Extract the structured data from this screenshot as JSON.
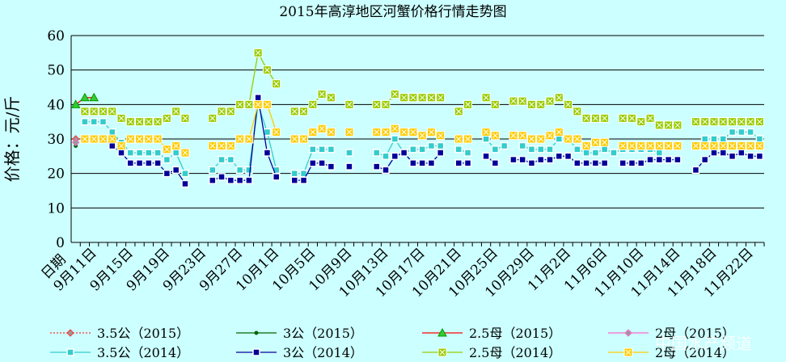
{
  "chart_data": {
    "type": "line",
    "title": "2015年高淳地区河蟹价格行情走势图",
    "ylabel": "价格：元/斤",
    "xlabel": "日期",
    "watermark": "中国水产频道",
    "ylim": [
      0,
      60
    ],
    "yticks": [
      0,
      10,
      20,
      30,
      40,
      50,
      60
    ],
    "grid": true,
    "categories": [
      null,
      null,
      "9月11日",
      null,
      null,
      null,
      "9月15日",
      null,
      null,
      null,
      "9月19日",
      null,
      null,
      null,
      "9月23日",
      null,
      null,
      null,
      "9月27日",
      null,
      null,
      null,
      "10月1日",
      null,
      null,
      null,
      "10月5日",
      null,
      null,
      null,
      "10月9日",
      null,
      null,
      null,
      "10月13日",
      null,
      null,
      null,
      "10月17日",
      null,
      null,
      null,
      "10月21日",
      null,
      null,
      null,
      "10月25日",
      null,
      null,
      null,
      "10月29日",
      null,
      null,
      null,
      "11月2日",
      null,
      null,
      null,
      "11月6日",
      null,
      null,
      null,
      "11月10日",
      null,
      null,
      null,
      "11月14日",
      null,
      null,
      null,
      "11月18日",
      null,
      null,
      null,
      "11月22日",
      null
    ],
    "series": [
      {
        "name": "3.5公（2015）",
        "color": "#ff3333",
        "marker": "diamond",
        "dash": true,
        "values": [
          30,
          null,
          null,
          null,
          null,
          null,
          null,
          null,
          null,
          null,
          null,
          null,
          null,
          null,
          null,
          null,
          null,
          null,
          null,
          null,
          null,
          null,
          null,
          null,
          null,
          null,
          null,
          null,
          null,
          null,
          null,
          null,
          null,
          null,
          null,
          null,
          null,
          null,
          null,
          null,
          null,
          null,
          null,
          null,
          null,
          null,
          null,
          null,
          null,
          null,
          null,
          null,
          null,
          null,
          null,
          null,
          null,
          null,
          null,
          null,
          null,
          null,
          null,
          null,
          null,
          null,
          null,
          null,
          null,
          null,
          null,
          null,
          null,
          null,
          null,
          null
        ]
      },
      {
        "name": "3公（2015）",
        "color": "#006600",
        "marker": "dot",
        "values": [
          28,
          null,
          null,
          null,
          null,
          null,
          null,
          null,
          null,
          null,
          null,
          null,
          null,
          null,
          null,
          null,
          null,
          null,
          null,
          null,
          null,
          null,
          null,
          null,
          null,
          null,
          null,
          null,
          null,
          null,
          null,
          null,
          null,
          null,
          null,
          null,
          null,
          null,
          null,
          null,
          null,
          null,
          null,
          null,
          null,
          null,
          null,
          null,
          null,
          null,
          null,
          null,
          null,
          null,
          null,
          null,
          null,
          null,
          null,
          null,
          null,
          null,
          null,
          null,
          null,
          null,
          null,
          null,
          null,
          null,
          null,
          null,
          null,
          null,
          null,
          null
        ]
      },
      {
        "name": "2.5母（2015）",
        "color": "#ff0000",
        "marker": "triangle",
        "values": [
          40,
          42,
          42,
          null,
          null,
          null,
          null,
          null,
          null,
          null,
          null,
          null,
          null,
          null,
          null,
          null,
          null,
          null,
          null,
          null,
          null,
          null,
          null,
          null,
          null,
          null,
          null,
          null,
          null,
          null,
          null,
          null,
          null,
          null,
          null,
          null,
          null,
          null,
          null,
          null,
          null,
          null,
          null,
          null,
          null,
          null,
          null,
          null,
          null,
          null,
          null,
          null,
          null,
          null,
          null,
          null,
          null,
          null,
          null,
          null,
          null,
          null,
          null,
          null,
          null,
          null,
          null,
          null,
          null,
          null,
          null,
          null,
          null,
          null,
          null,
          null
        ]
      },
      {
        "name": "2母（2015）",
        "color": "#ff66cc",
        "marker": "diamond",
        "values": [
          29,
          null,
          null,
          null,
          null,
          null,
          null,
          null,
          null,
          null,
          null,
          null,
          null,
          null,
          null,
          null,
          null,
          null,
          null,
          null,
          null,
          null,
          null,
          null,
          null,
          null,
          null,
          null,
          null,
          null,
          null,
          null,
          null,
          null,
          null,
          null,
          null,
          null,
          null,
          null,
          null,
          null,
          null,
          null,
          null,
          null,
          null,
          null,
          null,
          null,
          null,
          null,
          null,
          null,
          null,
          null,
          null,
          null,
          null,
          null,
          null,
          null,
          null,
          null,
          null,
          null,
          null,
          null,
          null,
          null,
          null,
          null,
          null,
          null,
          null,
          null
        ]
      },
      {
        "name": "3.5公（2014）",
        "color": "#33cccc",
        "marker": "square",
        "values": [
          null,
          35,
          35,
          35,
          32,
          29,
          26,
          26,
          26,
          26,
          24,
          26,
          20,
          null,
          null,
          21,
          24,
          24,
          21,
          21,
          40,
          32,
          21,
          null,
          20,
          20,
          27,
          27,
          27,
          null,
          26,
          null,
          null,
          26,
          25,
          30,
          26,
          27,
          27,
          28,
          28,
          null,
          27,
          26,
          null,
          30,
          27,
          28,
          null,
          28,
          27,
          27,
          27,
          30,
          30,
          27,
          26,
          26,
          27,
          26,
          27,
          27,
          27,
          27,
          26,
          null,
          null,
          null,
          28,
          30,
          30,
          30,
          32,
          32,
          32,
          30
        ]
      },
      {
        "name": "3公（2014）",
        "color": "#000099",
        "marker": "square",
        "values": [
          null,
          30,
          30,
          30,
          28,
          26,
          23,
          23,
          23,
          23,
          20,
          21,
          17,
          null,
          null,
          18,
          19,
          18,
          18,
          18,
          42,
          26,
          19,
          null,
          18,
          18,
          23,
          23,
          22,
          null,
          22,
          null,
          null,
          22,
          21,
          25,
          26,
          23,
          23,
          23,
          26,
          null,
          23,
          23,
          null,
          25,
          23,
          null,
          24,
          24,
          23,
          24,
          24,
          25,
          25,
          23,
          23,
          23,
          23,
          null,
          23,
          23,
          23,
          24,
          24,
          24,
          24,
          null,
          21,
          24,
          26,
          26,
          25,
          26,
          25,
          25
        ]
      },
      {
        "name": "2.5母（2014）",
        "color": "#99cc00",
        "marker": "squarex",
        "values": [
          null,
          38,
          38,
          38,
          38,
          36,
          35,
          35,
          35,
          35,
          36,
          38,
          36,
          null,
          null,
          36,
          38,
          38,
          40,
          40,
          55,
          50,
          46,
          null,
          38,
          38,
          40,
          43,
          42,
          null,
          40,
          null,
          null,
          40,
          40,
          43,
          42,
          42,
          42,
          42,
          42,
          null,
          38,
          40,
          null,
          42,
          40,
          null,
          41,
          41,
          40,
          40,
          41,
          42,
          40,
          38,
          36,
          36,
          36,
          null,
          36,
          36,
          35,
          36,
          34,
          34,
          34,
          null,
          35,
          35,
          35,
          35,
          35,
          35,
          35,
          35
        ]
      },
      {
        "name": "2母（2014）",
        "color": "#ffcc00",
        "marker": "squarex",
        "values": [
          null,
          30,
          30,
          30,
          30,
          28,
          30,
          30,
          30,
          30,
          27,
          28,
          26,
          null,
          null,
          28,
          28,
          28,
          30,
          30,
          40,
          40,
          32,
          null,
          30,
          30,
          32,
          33,
          32,
          null,
          32,
          null,
          null,
          32,
          32,
          33,
          32,
          32,
          31,
          32,
          31,
          null,
          30,
          30,
          null,
          32,
          31,
          null,
          31,
          31,
          30,
          30,
          31,
          32,
          30,
          30,
          28,
          29,
          29,
          null,
          28,
          28,
          28,
          28,
          28,
          28,
          28,
          null,
          28,
          28,
          28,
          28,
          28,
          28,
          28,
          28
        ]
      }
    ]
  }
}
